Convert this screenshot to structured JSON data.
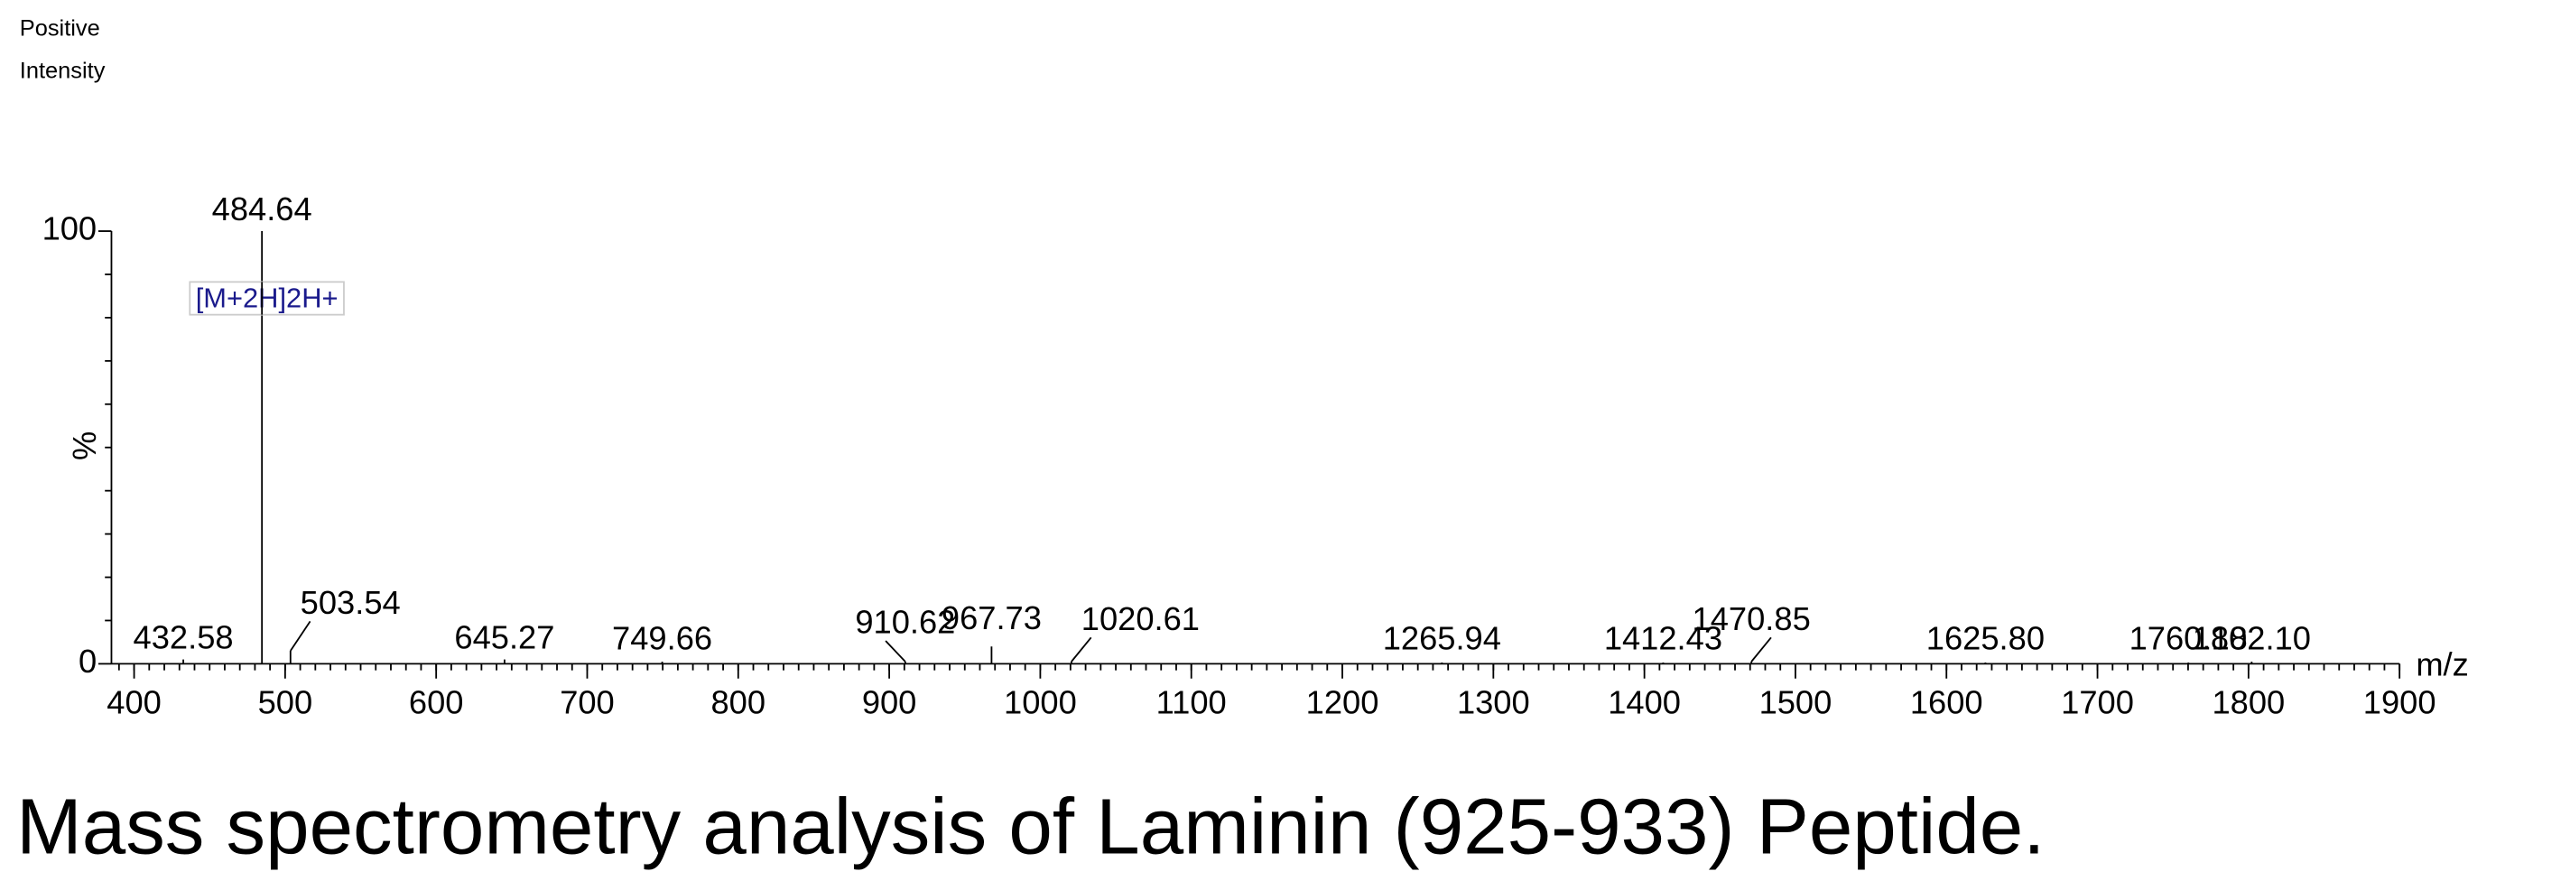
{
  "header": {
    "line1": "Positive",
    "line2": "Intensity"
  },
  "chart_data": {
    "type": "stem",
    "x_label": "m/z",
    "y_label": "%",
    "x": [
      432.58,
      484.64,
      503.54,
      645.27,
      749.66,
      910.62,
      967.73,
      1020.61,
      1265.94,
      1412.43,
      1470.85,
      1625.8,
      1760.18,
      1802.1
    ],
    "labels": [
      "432.58",
      "484.64",
      "503.54",
      "645.27",
      "749.66",
      "910.62",
      "967.73",
      "1020.61",
      "1265.94",
      "1412.43",
      "1470.85",
      "1625.80",
      "1760.18",
      "1802.10"
    ],
    "values": [
      1,
      100,
      3,
      1,
      0.5,
      0.5,
      4,
      0.5,
      0.3,
      0.3,
      0.5,
      0.3,
      0.3,
      0.5
    ],
    "color": "#000000",
    "annotation": "[M+2H]2H+",
    "xlim": [
      385,
      1900
    ],
    "xticks": [
      400,
      500,
      600,
      700,
      800,
      900,
      1000,
      1100,
      1200,
      1300,
      1400,
      1500,
      1600,
      1700,
      1800,
      1900
    ],
    "ylim": [
      0,
      100
    ],
    "yticks": [
      0,
      100
    ]
  },
  "caption": "Mass spectrometry analysis of Laminin (925-933) Peptide."
}
